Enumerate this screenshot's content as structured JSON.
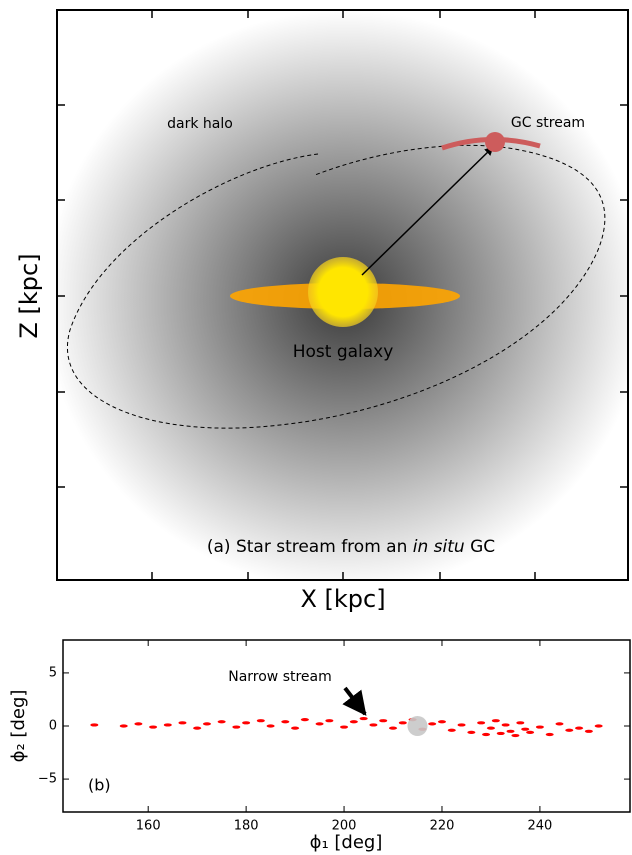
{
  "chart_data": [
    {
      "type": "schematic",
      "xlabel": "X [kpc]",
      "ylabel": "Z [kpc]",
      "annotations": {
        "halo": "dark halo",
        "stream": "GC stream",
        "galaxy": "Host galaxy",
        "caption_prefix": "(a) Star stream from an ",
        "caption_italic": "in situ",
        "caption_suffix": " GC"
      }
    },
    {
      "type": "scatter",
      "xlabel": "ϕ₁ [deg]",
      "ylabel": "ϕ₂ [deg]",
      "annotation": "Narrow stream",
      "panel_label": "(b)",
      "xlim": [
        142.6,
        258.4
      ],
      "ylim": [
        -8.1,
        8.1
      ],
      "xticks": [
        160,
        180,
        200,
        220,
        240
      ],
      "yticks": [
        {
          "value": -5,
          "label": "−5"
        },
        0,
        5
      ],
      "series": [
        {
          "color": "#ff0000",
          "x": [
            149,
            155,
            158,
            161,
            164,
            167,
            170,
            172,
            175,
            178,
            180,
            183,
            185,
            188,
            190,
            192,
            195,
            197,
            200,
            202,
            204,
            206,
            208,
            210,
            212,
            214,
            216,
            218,
            220,
            222,
            224,
            226,
            228,
            229,
            230,
            231,
            232,
            233,
            234,
            235,
            236,
            237,
            238,
            240,
            242,
            244,
            246,
            248,
            250,
            252
          ],
          "values": [
            0.1,
            0.0,
            0.2,
            -0.1,
            0.1,
            0.3,
            -0.2,
            0.2,
            0.4,
            -0.1,
            0.3,
            0.5,
            0.0,
            0.4,
            -0.2,
            0.6,
            0.2,
            0.5,
            -0.1,
            0.4,
            0.7,
            0.1,
            0.5,
            -0.2,
            0.3,
            0.6,
            -0.3,
            0.2,
            0.4,
            -0.4,
            0.1,
            -0.6,
            0.3,
            -0.8,
            -0.2,
            0.5,
            -0.7,
            0.1,
            -0.5,
            -0.9,
            0.3,
            -0.3,
            -0.6,
            -0.1,
            -0.8,
            0.2,
            -0.4,
            -0.2,
            -0.5,
            0.0
          ]
        }
      ],
      "progenitor": {
        "x": 215,
        "y": 0,
        "color": "#c8c8c8"
      }
    }
  ]
}
